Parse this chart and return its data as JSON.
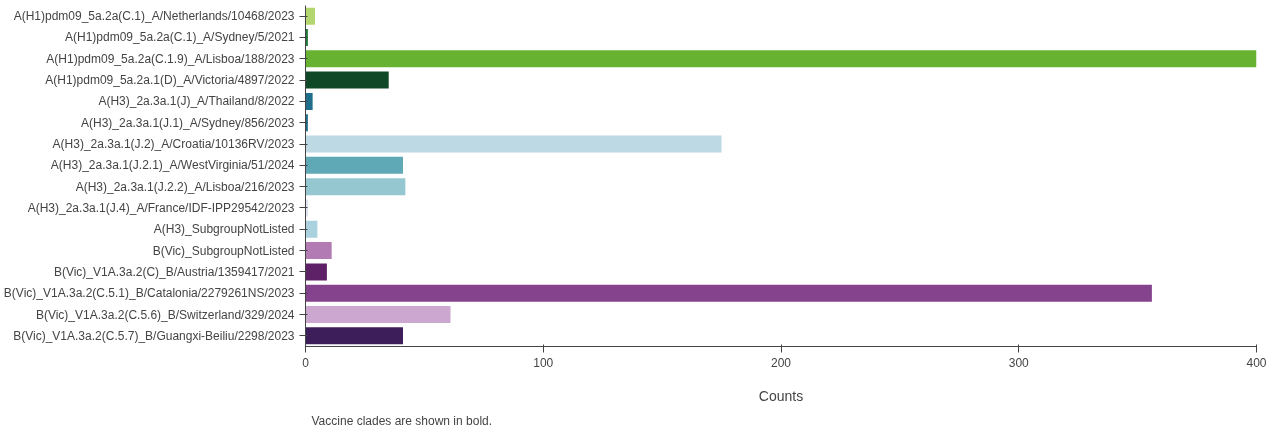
{
  "chart_data": {
    "type": "bar",
    "orientation": "horizontal",
    "xlabel": "Counts",
    "categories": [
      "A(H1)pdm09_5a.2a(C.1)_A/Netherlands/10468/2023",
      "A(H1)pdm09_5a.2a(C.1)_A/Sydney/5/2021",
      "A(H1)pdm09_5a.2a(C.1.9)_A/Lisboa/188/2023",
      "A(H1)pdm09_5a.2a.1(D)_A/Victoria/4897/2022",
      "A(H3)_2a.3a.1(J)_A/Thailand/8/2022",
      "A(H3)_2a.3a.1(J.1)_A/Sydney/856/2023",
      "A(H3)_2a.3a.1(J.2)_A/Croatia/10136RV/2023",
      "A(H3)_2a.3a.1(J.2.1)_A/WestVirginia/51/2024",
      "A(H3)_2a.3a.1(J.2.2)_A/Lisboa/216/2023",
      "A(H3)_2a.3a.1(J.4)_A/France/IDF-IPP29542/2023",
      "A(H3)_SubgroupNotListed",
      "B(Vic)_SubgroupNotListed",
      "B(Vic)_V1A.3a.2(C)_B/Austria/1359417/2021",
      "B(Vic)_V1A.3a.2(C.5.1)_B/Catalonia/2279261NS/2023",
      "B(Vic)_V1A.3a.2(C.5.6)_B/Switzerland/329/2024",
      "B(Vic)_V1A.3a.2(C.5.7)_B/Guangxi-Beiliu/2298/2023"
    ],
    "values": [
      4,
      1,
      400,
      35,
      3,
      1,
      175,
      41,
      42,
      1,
      5,
      11,
      9,
      356,
      61,
      41
    ],
    "colors": [
      "#b4d66e",
      "#1e7a36",
      "#68b232",
      "#0e4826",
      "#1f6e8c",
      "#1f6e8c",
      "#bcd9e4",
      "#5fa8b6",
      "#94c7d0",
      "#dde4ee",
      "#a9d2de",
      "#b37bb4",
      "#5e2167",
      "#86438d",
      "#cca7d0",
      "#3e1e5a"
    ],
    "xlim": [
      0,
      400
    ],
    "xticks": [
      0,
      100,
      200,
      300,
      400
    ],
    "grid": false,
    "annotations": [
      "Vaccine clades are shown in bold."
    ]
  }
}
